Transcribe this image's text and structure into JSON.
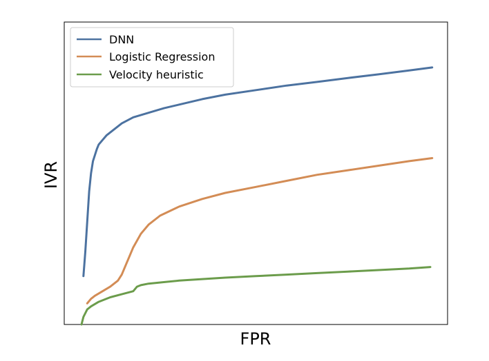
{
  "chart_data": {
    "type": "line",
    "title": "",
    "xlabel": "FPR",
    "ylabel": "IVR",
    "xlim": [
      0,
      1
    ],
    "ylim": [
      0,
      1
    ],
    "ticks_visible": false,
    "grid": false,
    "legend_position": "top-left",
    "series": [
      {
        "name": "DNN",
        "color": "#4c72a0",
        "x": [
          0.05,
          0.055,
          0.06,
          0.065,
          0.07,
          0.075,
          0.08,
          0.085,
          0.09,
          0.1,
          0.11,
          0.13,
          0.15,
          0.18,
          0.22,
          0.26,
          0.3,
          0.36,
          0.42,
          0.5,
          0.58,
          0.66,
          0.74,
          0.82,
          0.9,
          0.96
        ],
        "y": [
          0.16,
          0.24,
          0.34,
          0.44,
          0.5,
          0.54,
          0.56,
          0.58,
          0.595,
          0.61,
          0.625,
          0.645,
          0.665,
          0.685,
          0.7,
          0.715,
          0.727,
          0.745,
          0.76,
          0.775,
          0.79,
          0.802,
          0.815,
          0.827,
          0.84,
          0.85
        ]
      },
      {
        "name": "Logistic Regression",
        "color": "#d38c55",
        "x": [
          0.06,
          0.07,
          0.08,
          0.1,
          0.12,
          0.14,
          0.15,
          0.16,
          0.17,
          0.18,
          0.2,
          0.22,
          0.25,
          0.3,
          0.36,
          0.42,
          0.5,
          0.58,
          0.66,
          0.74,
          0.82,
          0.9,
          0.96
        ],
        "y": [
          0.07,
          0.085,
          0.095,
          0.11,
          0.125,
          0.145,
          0.165,
          0.195,
          0.225,
          0.255,
          0.3,
          0.33,
          0.36,
          0.39,
          0.415,
          0.435,
          0.455,
          0.475,
          0.495,
          0.51,
          0.525,
          0.54,
          0.55
        ]
      },
      {
        "name": "Velocity heuristic",
        "color": "#6b9c4b",
        "x": [
          0.045,
          0.05,
          0.06,
          0.07,
          0.09,
          0.12,
          0.15,
          0.18,
          0.19,
          0.2,
          0.22,
          0.26,
          0.3,
          0.36,
          0.42,
          0.5,
          0.58,
          0.66,
          0.74,
          0.82,
          0.9,
          0.955
        ],
        "y": [
          0.0,
          0.025,
          0.05,
          0.06,
          0.075,
          0.09,
          0.1,
          0.11,
          0.125,
          0.13,
          0.135,
          0.14,
          0.145,
          0.15,
          0.155,
          0.16,
          0.165,
          0.17,
          0.175,
          0.18,
          0.185,
          0.19
        ]
      }
    ]
  }
}
